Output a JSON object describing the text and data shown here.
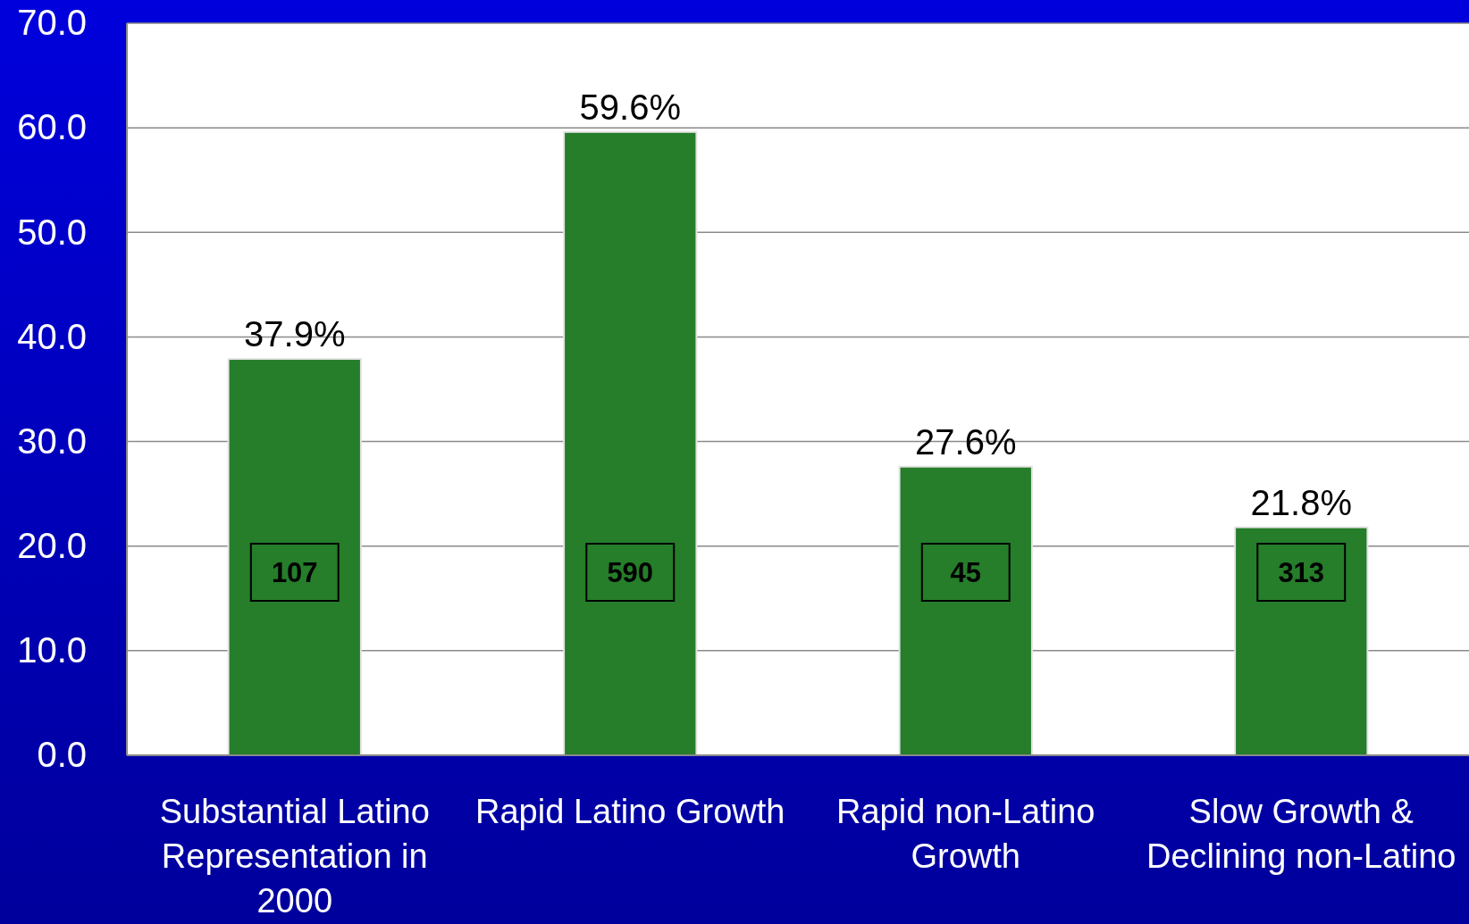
{
  "chart_data": {
    "type": "bar",
    "categories": [
      "Substantial Latino Representation in 2000",
      "Rapid Latino Growth",
      "Rapid non-Latino Growth",
      "Slow Growth & Declining non-Latino"
    ],
    "values": [
      37.9,
      59.6,
      27.6,
      21.8
    ],
    "value_labels": [
      "37.9%",
      "59.6%",
      "27.6%",
      "21.8%"
    ],
    "color": "#267d2a",
    "ylim": [
      0,
      70
    ],
    "yticks": [
      {
        "value": 0,
        "label": "0.0"
      },
      {
        "value": 10,
        "label": "10.0"
      },
      {
        "value": 20,
        "label": "20.0"
      },
      {
        "value": 30,
        "label": "30.0"
      },
      {
        "value": 40,
        "label": "40.0"
      },
      {
        "value": 50,
        "label": "50.0"
      },
      {
        "value": 60,
        "label": "60.0"
      },
      {
        "value": 70,
        "label": "70.0"
      }
    ],
    "grid": "y",
    "annotations": [
      "107",
      "590",
      "45",
      "313"
    ]
  }
}
